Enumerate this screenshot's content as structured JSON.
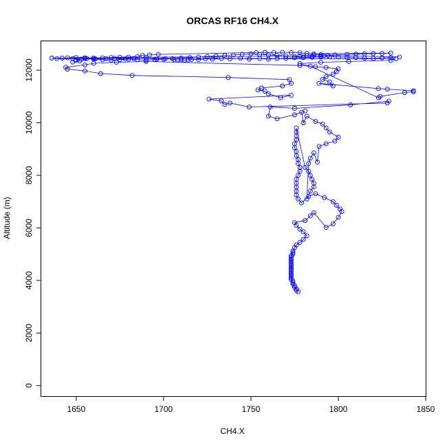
{
  "chart_data": {
    "type": "scatter",
    "title": "ORCAS RF16 CH4.X",
    "xlabel": "CH4.X",
    "ylabel": "Altitude (m)",
    "xlim": [
      1630,
      1850
    ],
    "ylim": [
      -400,
      13100
    ],
    "x_ticks": [
      1650,
      1700,
      1750,
      1800,
      1850
    ],
    "y_ticks": [
      0,
      2000,
      4000,
      6000,
      8000,
      10000,
      12000
    ],
    "grid": false,
    "legend": "none",
    "colors": {
      "series": "#0000ff",
      "axes": "#000000"
    },
    "series": [
      {
        "marker": "open-circle",
        "connect": true,
        "points": [
          [
            1777,
            3570
          ],
          [
            1776,
            3620
          ],
          [
            1776,
            3680
          ],
          [
            1775,
            3740
          ],
          [
            1775,
            3800
          ],
          [
            1774,
            3860
          ],
          [
            1774,
            3920
          ],
          [
            1774,
            3980
          ],
          [
            1773,
            4040
          ],
          [
            1773,
            4100
          ],
          [
            1773,
            4160
          ],
          [
            1773,
            4220
          ],
          [
            1773,
            4280
          ],
          [
            1773,
            4340
          ],
          [
            1773,
            4400
          ],
          [
            1773,
            4460
          ],
          [
            1773,
            4520
          ],
          [
            1773,
            4580
          ],
          [
            1773,
            4640
          ],
          [
            1773,
            4700
          ],
          [
            1773,
            4760
          ],
          [
            1773,
            4820
          ],
          [
            1773,
            4880
          ],
          [
            1773,
            4940
          ],
          [
            1774,
            5000
          ],
          [
            1774,
            5060
          ],
          [
            1774,
            5120
          ],
          [
            1775,
            5250
          ],
          [
            1776,
            5350
          ],
          [
            1778,
            5450
          ],
          [
            1780,
            5560
          ],
          [
            1782,
            5700
          ],
          [
            1780,
            5850
          ],
          [
            1778,
            5950
          ],
          [
            1776,
            6100
          ],
          [
            1775,
            6200
          ],
          [
            1781,
            6280
          ],
          [
            1784,
            6460
          ],
          [
            1786,
            6580
          ],
          [
            1793,
            6020
          ],
          [
            1797,
            6150
          ],
          [
            1800,
            6400
          ],
          [
            1802,
            6620
          ],
          [
            1801,
            6720
          ],
          [
            1799,
            6860
          ],
          [
            1797,
            7000
          ],
          [
            1792,
            7150
          ],
          [
            1787,
            7300
          ],
          [
            1783,
            7200
          ],
          [
            1779,
            6950
          ],
          [
            1777,
            7100
          ],
          [
            1776,
            7250
          ],
          [
            1776,
            7400
          ],
          [
            1776,
            7550
          ],
          [
            1776,
            7700
          ],
          [
            1776,
            7850
          ],
          [
            1777,
            8000
          ],
          [
            1778,
            8150
          ],
          [
            1778,
            8300
          ],
          [
            1777,
            8450
          ],
          [
            1777,
            8600
          ],
          [
            1776,
            8750
          ],
          [
            1776,
            8900
          ],
          [
            1775,
            9050
          ],
          [
            1775,
            9200
          ],
          [
            1776,
            9350
          ],
          [
            1776,
            9500
          ],
          [
            1776,
            9650
          ],
          [
            1776,
            9800
          ],
          [
            1781,
            8300
          ],
          [
            1783,
            8150
          ],
          [
            1784,
            8000
          ],
          [
            1785,
            7850
          ],
          [
            1786,
            7700
          ],
          [
            1786,
            7560
          ],
          [
            1784,
            7400
          ],
          [
            1782,
            7100
          ],
          [
            1783,
            8450
          ],
          [
            1784,
            8650
          ],
          [
            1786,
            8850
          ],
          [
            1788,
            8500
          ],
          [
            1789,
            9100
          ],
          [
            1793,
            9200
          ],
          [
            1798,
            9300
          ],
          [
            1800,
            9450
          ],
          [
            1795,
            9650
          ],
          [
            1793,
            9800
          ],
          [
            1791,
            9950
          ],
          [
            1787,
            10050
          ],
          [
            1782,
            10250
          ],
          [
            1780,
            10000
          ],
          [
            1779,
            10400
          ],
          [
            1781,
            10450
          ],
          [
            1775,
            10300
          ],
          [
            1765,
            10150
          ],
          [
            1760,
            10250
          ],
          [
            1761,
            10600
          ],
          [
            1775,
            10550
          ],
          [
            1807,
            10680
          ],
          [
            1829,
            10820
          ],
          [
            1828,
            10750
          ],
          [
            1749,
            10600
          ],
          [
            1738,
            10750
          ],
          [
            1735,
            10700
          ],
          [
            1733,
            10830
          ],
          [
            1726,
            10900
          ],
          [
            1773,
            11050
          ],
          [
            1767,
            10950
          ],
          [
            1760,
            11100
          ],
          [
            1758,
            11200
          ],
          [
            1754,
            11250
          ],
          [
            1756,
            11320
          ],
          [
            1768,
            11400
          ],
          [
            1773,
            11500
          ],
          [
            1772,
            11640
          ],
          [
            1737,
            11720
          ],
          [
            1682,
            11800
          ],
          [
            1664,
            11870
          ],
          [
            1655,
            11970
          ],
          [
            1645,
            12040
          ],
          [
            1644,
            12110
          ],
          [
            1655,
            12200
          ],
          [
            1660,
            12260
          ],
          [
            1673,
            12300
          ],
          [
            1690,
            12330
          ],
          [
            1778,
            12180
          ],
          [
            1787,
            12130
          ],
          [
            1793,
            12100
          ],
          [
            1800,
            12050
          ],
          [
            1799,
            11950
          ],
          [
            1797,
            11850
          ],
          [
            1793,
            11750
          ],
          [
            1791,
            11650
          ],
          [
            1795,
            11550
          ],
          [
            1797,
            11400
          ],
          [
            1789,
            11500
          ],
          [
            1823,
            11300
          ],
          [
            1828,
            11280
          ],
          [
            1843,
            11220
          ],
          [
            1843,
            11180
          ],
          [
            1838,
            11150
          ],
          [
            1824,
            11000
          ],
          [
            1823,
            10950
          ],
          [
            1784,
            12150
          ],
          [
            1778,
            12250
          ],
          [
            1790,
            12300
          ],
          [
            1806,
            12330
          ],
          [
            1830,
            12370
          ],
          [
            1833,
            12430
          ],
          [
            1636,
            12460
          ],
          [
            1639,
            12440
          ],
          [
            1648,
            12440
          ],
          [
            1653,
            12420
          ],
          [
            1656,
            12440
          ],
          [
            1661,
            12430
          ],
          [
            1667,
            12440
          ],
          [
            1672,
            12450
          ],
          [
            1678,
            12430
          ],
          [
            1683,
            12440
          ],
          [
            1690,
            12450
          ],
          [
            1696,
            12420
          ],
          [
            1701,
            12440
          ],
          [
            1706,
            12410
          ],
          [
            1708,
            12390
          ],
          [
            1710,
            12400
          ],
          [
            1712,
            12380
          ],
          [
            1714,
            12390
          ],
          [
            1716,
            12410
          ],
          [
            1720,
            12400
          ],
          [
            1724,
            12430
          ],
          [
            1728,
            12420
          ],
          [
            1733,
            12440
          ],
          [
            1738,
            12430
          ],
          [
            1744,
            12450
          ],
          [
            1749,
            12420
          ],
          [
            1755,
            12440
          ],
          [
            1760,
            12420
          ],
          [
            1765,
            12440
          ],
          [
            1770,
            12450
          ],
          [
            1775,
            12470
          ],
          [
            1780,
            12480
          ],
          [
            1785,
            12490
          ],
          [
            1790,
            12500
          ],
          [
            1795,
            12510
          ],
          [
            1800,
            12500
          ],
          [
            1805,
            12490
          ],
          [
            1810,
            12480
          ],
          [
            1815,
            12460
          ],
          [
            1820,
            12440
          ],
          [
            1825,
            12470
          ],
          [
            1830,
            12480
          ],
          [
            1835,
            12500
          ],
          [
            1792,
            12560
          ],
          [
            1798,
            12580
          ],
          [
            1805,
            12600
          ],
          [
            1810,
            12610
          ],
          [
            1815,
            12620
          ],
          [
            1820,
            12630
          ],
          [
            1825,
            12640
          ],
          [
            1830,
            12650
          ],
          [
            1786,
            12620
          ],
          [
            1782,
            12640
          ],
          [
            1778,
            12660
          ],
          [
            1773,
            12670
          ],
          [
            1768,
            12680
          ],
          [
            1763,
            12670
          ],
          [
            1758,
            12680
          ],
          [
            1753,
            12670
          ],
          [
            1697,
            12600
          ],
          [
            1692,
            12580
          ],
          [
            1688,
            12560
          ],
          [
            1685,
            12520
          ],
          [
            1680,
            12500
          ],
          [
            1675,
            12490
          ],
          [
            1670,
            12480
          ],
          [
            1665,
            12470
          ],
          [
            1660,
            12460
          ],
          [
            1655,
            12470
          ],
          [
            1650,
            12480
          ],
          [
            1645,
            12470
          ],
          [
            1642,
            12460
          ],
          [
            1778,
            12540
          ],
          [
            1782,
            12560
          ],
          [
            1786,
            12580
          ],
          [
            1790,
            12590
          ],
          [
            1794,
            12570
          ],
          [
            1790,
            12540
          ],
          [
            1785,
            12520
          ],
          [
            1780,
            12500
          ],
          [
            1775,
            12520
          ],
          [
            1770,
            12540
          ],
          [
            1765,
            12560
          ],
          [
            1760,
            12580
          ],
          [
            1755,
            12600
          ],
          [
            1750,
            12620
          ],
          [
            1745,
            12600
          ],
          [
            1740,
            12580
          ],
          [
            1735,
            12560
          ],
          [
            1730,
            12540
          ],
          [
            1725,
            12520
          ],
          [
            1720,
            12500
          ],
          [
            1715,
            12480
          ],
          [
            1710,
            12460
          ],
          [
            1705,
            12440
          ],
          [
            1700,
            12420
          ],
          [
            1695,
            12400
          ],
          [
            1690,
            12380
          ],
          [
            1685,
            12400
          ],
          [
            1680,
            12420
          ],
          [
            1675,
            12400
          ],
          [
            1670,
            12380
          ],
          [
            1665,
            12400
          ],
          [
            1660,
            12420
          ],
          [
            1655,
            12440
          ],
          [
            1650,
            12380
          ],
          [
            1652,
            12350
          ],
          [
            1648,
            12310
          ]
        ]
      }
    ]
  }
}
